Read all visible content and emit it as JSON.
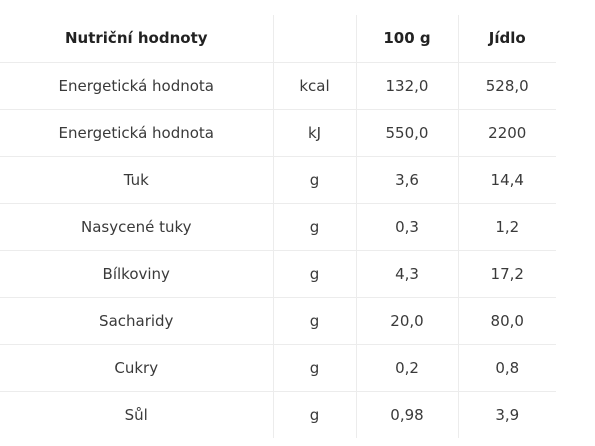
{
  "header": {
    "name": "Nutriční hodnoty",
    "unit": "",
    "per_100g": "100 g",
    "per_meal": "Jídlo"
  },
  "rows": [
    {
      "name": "Energetická hodnota",
      "unit": "kcal",
      "per_100g": "132,0",
      "per_meal": "528,0"
    },
    {
      "name": "Energetická hodnota",
      "unit": "kJ",
      "per_100g": "550,0",
      "per_meal": "2200"
    },
    {
      "name": "Tuk",
      "unit": "g",
      "per_100g": "3,6",
      "per_meal": "14,4"
    },
    {
      "name": "Nasycené tuky",
      "unit": "g",
      "per_100g": "0,3",
      "per_meal": "1,2"
    },
    {
      "name": "Bílkoviny",
      "unit": "g",
      "per_100g": "4,3",
      "per_meal": "17,2"
    },
    {
      "name": "Sacharidy",
      "unit": "g",
      "per_100g": "20,0",
      "per_meal": "80,0"
    },
    {
      "name": "Cukry",
      "unit": "g",
      "per_100g": "0,2",
      "per_meal": "0,8"
    },
    {
      "name": "Sůl",
      "unit": "g",
      "per_100g": "0,98",
      "per_meal": "3,9"
    }
  ]
}
